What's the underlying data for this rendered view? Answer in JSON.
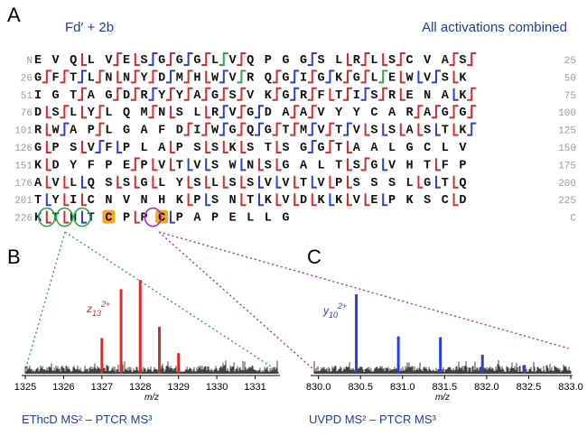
{
  "panels": {
    "a": {
      "letter": "A",
      "title_left": "Fd′ + 2b",
      "title_right": "All activations combined"
    },
    "b": {
      "letter": "B",
      "ion_label": "z",
      "ion_sub": "13",
      "ion_sup": "2+",
      "xlabel": "m/z",
      "caption": "EThcD MS² – PTCR MS³",
      "ticks": [
        "1325",
        "1326",
        "1327",
        "1328",
        "1329",
        "1330",
        "1331"
      ]
    },
    "c": {
      "letter": "C",
      "ion_label": "y",
      "ion_sub": "10",
      "ion_sup": "2+",
      "xlabel": "m/z",
      "caption": "UVPD MS² – PTCR MS³",
      "ticks": [
        "830.0",
        "830.5",
        "831.0",
        "831.5",
        "832.0",
        "832.5",
        "833.0"
      ]
    }
  },
  "sequence_rows": [
    {
      "start": "N",
      "end": "25",
      "residues": "EVQLVESGGGLVQPGGSLRLSCVAS"
    },
    {
      "start": "26",
      "end": "50",
      "residues": "GFTLNNYDMHWVRQGIGKGLEWVSK"
    },
    {
      "start": "51",
      "end": "75",
      "residues": "IGTAGDRYYAGSVKGRFTISRENAK"
    },
    {
      "start": "76",
      "end": "100",
      "residues": "DSLYLQMNSLRVGDAAVYYCARAGG"
    },
    {
      "start": "101",
      "end": "125",
      "residues": "RWAPLGAFDIWGQGTMVTVSSASTK"
    },
    {
      "start": "126",
      "end": "150",
      "residues": "GPSVFPLAPSSKSTSGGTAALGCLV"
    },
    {
      "start": "151",
      "end": "175",
      "residues": "KDYFPEPVTVSWNSGALTSGVHTFP"
    },
    {
      "start": "176",
      "end": "200",
      "residues": "AVLQSSGLYSLSSVVTVPSSSLGTQ"
    },
    {
      "start": "201",
      "end": "225",
      "residues": "TYICNVNHKPSNTKVDKKVEPKSCD"
    },
    {
      "start": "226",
      "end": "C",
      "residues": "KTHTCPPCPAPELLG"
    }
  ],
  "colors": {
    "red": "#d92b2b",
    "blue": "#2b3fd9",
    "green": "#2ea84a",
    "purple": "#b02bb0",
    "orange": "#f5a623",
    "gray": "#9a9a9a",
    "title_blue": "#1f3f99"
  },
  "chart_data": [
    {
      "type": "line",
      "title": "EThcD MS² – PTCR MS³",
      "xlabel": "m/z",
      "xlim": [
        1325,
        1331.6
      ],
      "annotation": "z13 2+",
      "series": [
        {
          "name": "z13 2+ isotopic peaks",
          "x": [
            1327.0,
            1327.5,
            1328.0,
            1328.5,
            1329.0
          ],
          "values": [
            0.38,
            0.9,
            1.0,
            0.5,
            0.22
          ]
        }
      ]
    },
    {
      "type": "line",
      "title": "UVPD MS² – PTCR MS³",
      "xlabel": "m/z",
      "xlim": [
        829.95,
        833.0
      ],
      "annotation": "y10 2+",
      "series": [
        {
          "name": "y10 2+ isotopic peaks",
          "x": [
            830.45,
            830.95,
            831.45,
            831.95,
            832.45
          ],
          "values": [
            1.0,
            0.47,
            0.46,
            0.24,
            0.11
          ]
        }
      ]
    }
  ]
}
